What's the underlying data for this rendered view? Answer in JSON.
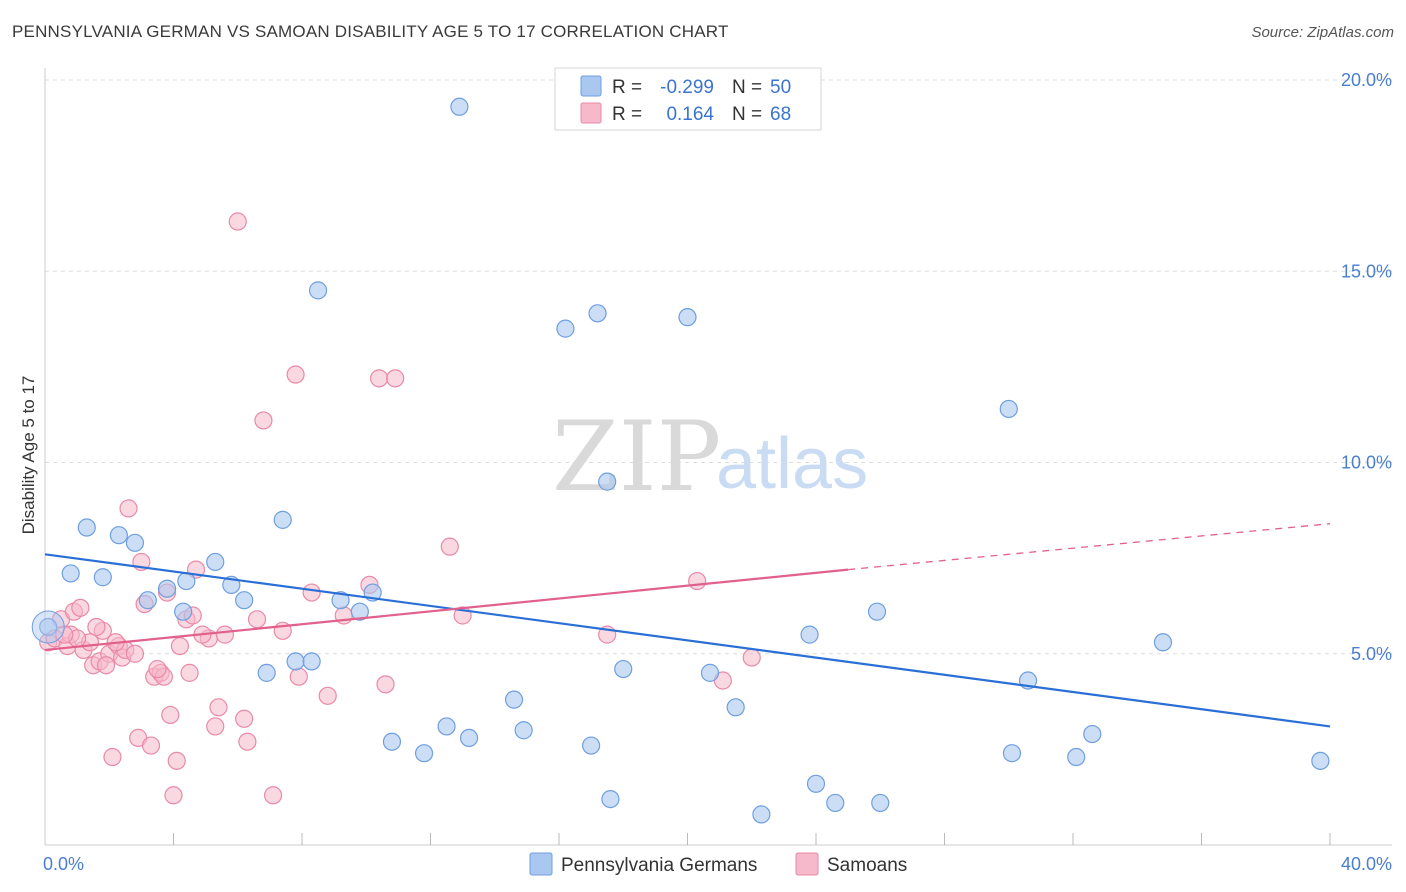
{
  "header": {
    "title": "PENNSYLVANIA GERMAN VS SAMOAN DISABILITY AGE 5 TO 17 CORRELATION CHART",
    "source": "Source: ZipAtlas.com"
  },
  "watermark": {
    "zip": "ZIP",
    "atlas": "atlas"
  },
  "legend": {
    "row1": {
      "r_label": "R =",
      "r_value": "-0.299",
      "n_label": "N =",
      "n_value": "50"
    },
    "row2": {
      "r_label": "R =",
      "r_value": "0.164",
      "n_label": "N =",
      "n_value": "68"
    }
  },
  "bottom_legend": {
    "series1": "Pennsylvania Germans",
    "series2": "Samoans"
  },
  "colors": {
    "blue_fill": "#aac8ef",
    "blue_stroke": "#6e9fe0",
    "blue_line": "#2a6fd6",
    "pink_fill": "#f6b8cb",
    "pink_stroke": "#e98aa8",
    "pink_line": "#e2608c",
    "grid": "#dddddd",
    "axis_text": "#4a7fd0"
  },
  "chart_data": {
    "type": "scatter",
    "title": "PENNSYLVANIA GERMAN VS SAMOAN DISABILITY AGE 5 TO 17 CORRELATION CHART",
    "xlabel": "",
    "ylabel": "Disability Age 5 to 17",
    "xlim": [
      0,
      40
    ],
    "ylim": [
      0,
      20
    ],
    "x_tick_labels": [
      "0.0%",
      "40.0%"
    ],
    "y_ticks": [
      5,
      10,
      15,
      20
    ],
    "y_tick_labels": [
      "5.0%",
      "10.0%",
      "15.0%",
      "20.0%"
    ],
    "grid": true,
    "legend_position": "top-center",
    "series": [
      {
        "name": "Pennsylvania Germans",
        "r": -0.299,
        "n": 50,
        "trend": {
          "x0": 0,
          "y0": 7.6,
          "x1": 40,
          "y1": 3.1
        },
        "points": [
          [
            0.1,
            5.7
          ],
          [
            0.8,
            7.1
          ],
          [
            1.3,
            8.3
          ],
          [
            1.8,
            7.0
          ],
          [
            2.3,
            8.1
          ],
          [
            2.8,
            7.9
          ],
          [
            3.2,
            6.4
          ],
          [
            3.8,
            6.7
          ],
          [
            4.3,
            6.1
          ],
          [
            4.4,
            6.9
          ],
          [
            5.3,
            7.4
          ],
          [
            5.8,
            6.8
          ],
          [
            6.2,
            6.4
          ],
          [
            6.9,
            4.5
          ],
          [
            7.4,
            8.5
          ],
          [
            7.8,
            4.8
          ],
          [
            8.3,
            4.8
          ],
          [
            8.5,
            14.5
          ],
          [
            9.2,
            6.4
          ],
          [
            9.8,
            6.1
          ],
          [
            10.2,
            6.6
          ],
          [
            10.8,
            2.7
          ],
          [
            11.8,
            2.4
          ],
          [
            12.5,
            3.1
          ],
          [
            12.9,
            19.3
          ],
          [
            13.2,
            2.8
          ],
          [
            14.6,
            3.8
          ],
          [
            14.9,
            3.0
          ],
          [
            16.2,
            13.5
          ],
          [
            17.0,
            2.6
          ],
          [
            17.2,
            13.9
          ],
          [
            17.5,
            9.5
          ],
          [
            17.6,
            1.2
          ],
          [
            18.0,
            4.6
          ],
          [
            20.0,
            13.8
          ],
          [
            20.7,
            4.5
          ],
          [
            21.5,
            3.6
          ],
          [
            22.3,
            0.8
          ],
          [
            23.8,
            5.5
          ],
          [
            24.0,
            1.6
          ],
          [
            24.6,
            1.1
          ],
          [
            25.9,
            6.1
          ],
          [
            26.0,
            1.1
          ],
          [
            30.0,
            11.4
          ],
          [
            30.1,
            2.4
          ],
          [
            30.6,
            4.3
          ],
          [
            32.1,
            2.3
          ],
          [
            32.6,
            2.9
          ],
          [
            34.8,
            5.3
          ],
          [
            39.7,
            2.2
          ]
        ]
      },
      {
        "name": "Samoans",
        "r": 0.164,
        "n": 68,
        "trend": {
          "x0": 0,
          "y0": 5.1,
          "x1": 25,
          "y1": 7.2,
          "dashed_to": {
            "x": 40,
            "y": 8.4
          }
        },
        "points": [
          [
            0.1,
            5.3
          ],
          [
            0.3,
            5.4
          ],
          [
            0.5,
            5.9
          ],
          [
            0.7,
            5.2
          ],
          [
            0.8,
            5.5
          ],
          [
            0.9,
            6.1
          ],
          [
            1.1,
            6.2
          ],
          [
            1.2,
            5.1
          ],
          [
            1.4,
            5.3
          ],
          [
            1.5,
            4.7
          ],
          [
            1.7,
            4.8
          ],
          [
            1.8,
            5.6
          ],
          [
            2.0,
            5.0
          ],
          [
            2.1,
            2.3
          ],
          [
            2.3,
            5.2
          ],
          [
            2.4,
            4.9
          ],
          [
            2.5,
            5.1
          ],
          [
            2.6,
            8.8
          ],
          [
            2.8,
            5.0
          ],
          [
            2.9,
            2.8
          ],
          [
            3.0,
            7.4
          ],
          [
            3.1,
            6.3
          ],
          [
            3.3,
            2.6
          ],
          [
            3.4,
            4.4
          ],
          [
            3.6,
            4.5
          ],
          [
            3.7,
            4.4
          ],
          [
            3.8,
            6.6
          ],
          [
            3.9,
            3.4
          ],
          [
            4.0,
            1.3
          ],
          [
            4.1,
            2.2
          ],
          [
            4.2,
            5.2
          ],
          [
            4.4,
            5.9
          ],
          [
            4.5,
            4.5
          ],
          [
            4.6,
            6.0
          ],
          [
            4.7,
            7.2
          ],
          [
            5.1,
            5.4
          ],
          [
            5.3,
            3.1
          ],
          [
            5.4,
            3.6
          ],
          [
            5.6,
            5.5
          ],
          [
            6.0,
            16.3
          ],
          [
            6.2,
            3.3
          ],
          [
            6.3,
            2.7
          ],
          [
            6.6,
            5.9
          ],
          [
            6.8,
            11.1
          ],
          [
            7.1,
            1.3
          ],
          [
            7.4,
            5.6
          ],
          [
            7.8,
            12.3
          ],
          [
            7.9,
            4.4
          ],
          [
            8.3,
            6.6
          ],
          [
            8.8,
            3.9
          ],
          [
            9.3,
            6.0
          ],
          [
            10.1,
            6.8
          ],
          [
            10.4,
            12.2
          ],
          [
            10.6,
            4.2
          ],
          [
            10.9,
            12.2
          ],
          [
            12.6,
            7.8
          ],
          [
            13.0,
            6.0
          ],
          [
            17.5,
            5.5
          ],
          [
            20.3,
            6.9
          ],
          [
            21.1,
            4.3
          ],
          [
            22.0,
            4.9
          ],
          [
            1.0,
            5.4
          ],
          [
            1.6,
            5.7
          ],
          [
            2.2,
            5.3
          ],
          [
            3.5,
            4.6
          ],
          [
            4.9,
            5.5
          ],
          [
            0.6,
            5.5
          ],
          [
            1.9,
            4.7
          ]
        ]
      }
    ]
  }
}
